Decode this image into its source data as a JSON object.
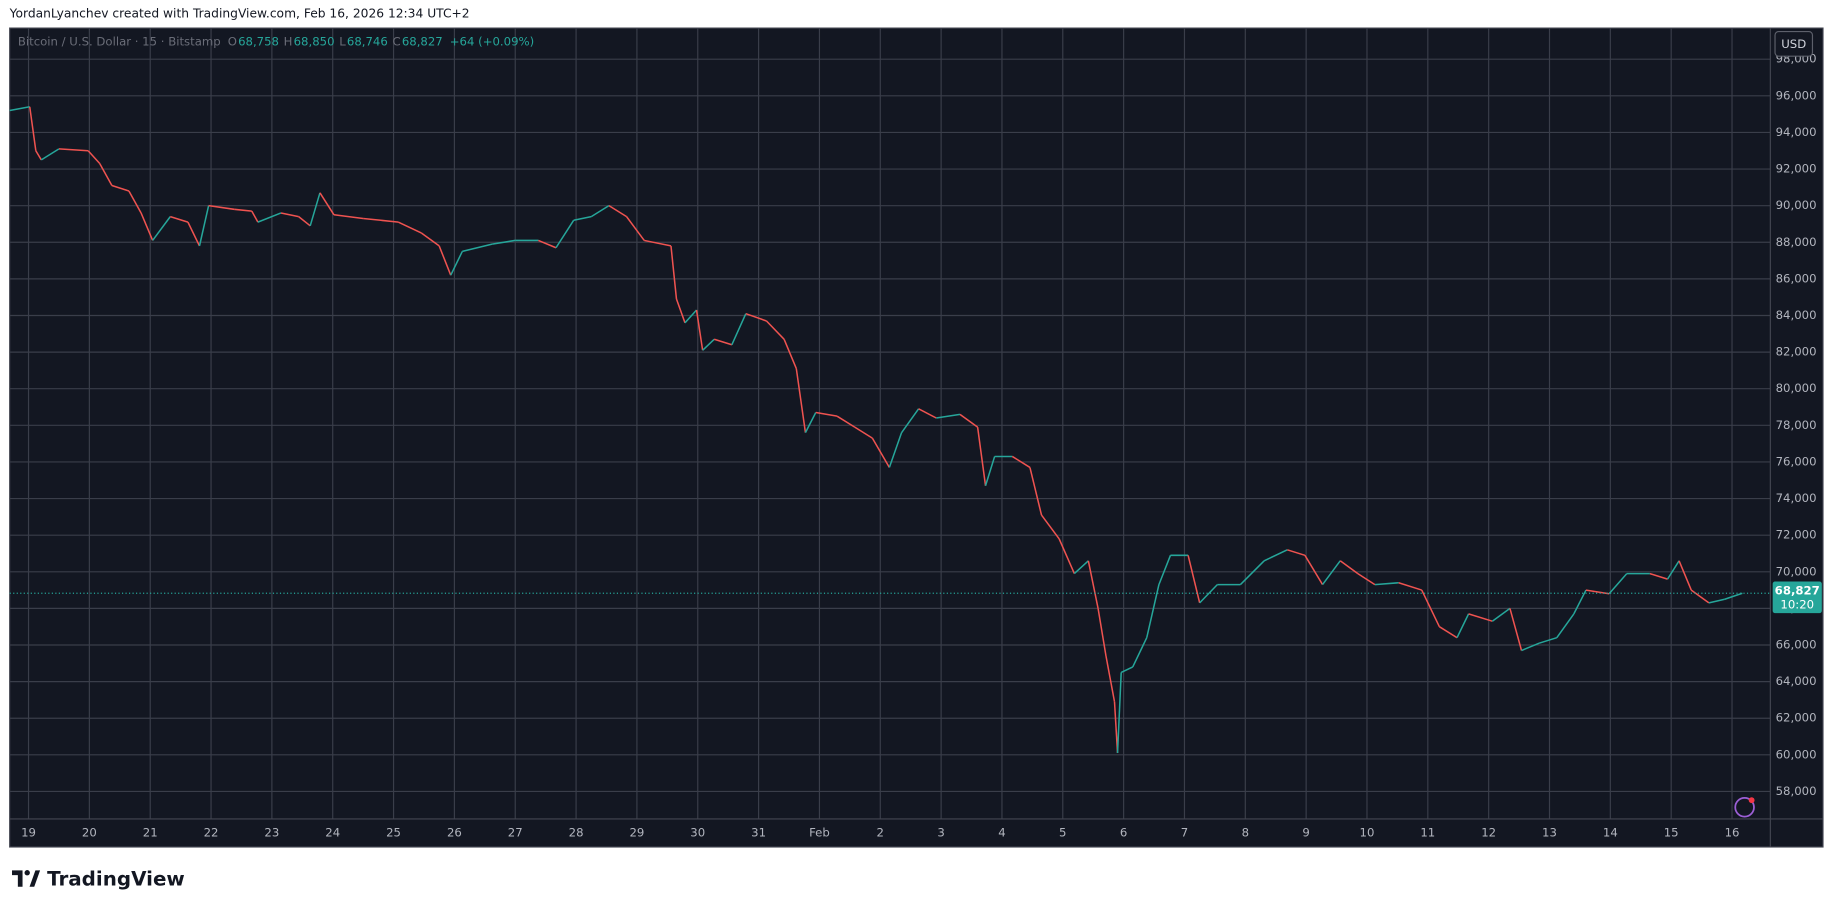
{
  "header": {
    "attribution": "YordanLyanchev created with TradingView.com, Feb 16, 2026 12:34 UTC+2"
  },
  "chart_data": {
    "type": "line",
    "title": "Bitcoin / U.S. Dollar · 15 · Bitstamp",
    "ohlc": [
      {
        "label": "O",
        "value": "68,758"
      },
      {
        "label": "H",
        "value": "68,850"
      },
      {
        "label": "L",
        "value": "68,746"
      },
      {
        "label": "C",
        "value": "68,827"
      }
    ],
    "change": "+64 (+0.09%)",
    "currency": "USD",
    "price_label": "68,827",
    "countdown": "10:20",
    "x": [
      -0.31,
      0.02,
      0.12,
      0.21,
      0.5,
      0.98,
      1.17,
      1.37,
      1.65,
      1.85,
      2.04,
      2.33,
      2.62,
      2.81,
      2.96,
      3.38,
      3.67,
      3.77,
      4.15,
      4.44,
      4.63,
      4.79,
      5.02,
      5.5,
      6.08,
      6.46,
      6.75,
      6.94,
      7.13,
      7.62,
      8.0,
      8.38,
      8.67,
      8.96,
      9.25,
      9.54,
      9.83,
      10.12,
      10.56,
      10.65,
      10.79,
      10.98,
      11.08,
      11.27,
      11.56,
      11.79,
      12.13,
      12.42,
      12.62,
      12.77,
      12.94,
      13.29,
      13.58,
      13.87,
      14.15,
      14.35,
      14.63,
      14.92,
      15.31,
      15.6,
      15.73,
      15.88,
      16.17,
      16.46,
      16.65,
      16.94,
      17.19,
      17.42,
      17.58,
      17.71,
      17.85,
      17.9,
      17.96,
      18.15,
      18.38,
      18.58,
      18.77,
      19.06,
      19.25,
      19.54,
      19.92,
      20.31,
      20.69,
      20.98,
      21.27,
      21.56,
      21.85,
      22.13,
      22.52,
      22.9,
      23.19,
      23.48,
      23.67,
      24.06,
      24.35,
      24.54,
      24.83,
      25.12,
      25.4,
      25.6,
      25.98,
      26.27,
      26.65,
      26.94,
      27.13,
      27.33,
      27.62,
      27.88,
      28.17
    ],
    "series": [
      {
        "up_color": "#26a69a",
        "down_color": "#ef5350",
        "values": [
          95200,
          95400,
          93000,
          92500,
          93100,
          93000,
          92300,
          91100,
          90800,
          89600,
          88100,
          89400,
          89100,
          87800,
          90000,
          89800,
          89700,
          89100,
          89600,
          89400,
          88900,
          90700,
          89500,
          89300,
          89100,
          88500,
          87800,
          86200,
          87500,
          87900,
          88100,
          88100,
          87700,
          89200,
          89400,
          90000,
          89400,
          88100,
          87800,
          84900,
          83600,
          84300,
          82100,
          82700,
          82400,
          84100,
          83700,
          82700,
          81100,
          77600,
          78700,
          78500,
          77900,
          77300,
          75700,
          77600,
          78900,
          78400,
          78600,
          77900,
          74700,
          76300,
          76300,
          75700,
          73100,
          71800,
          69900,
          70600,
          68000,
          65400,
          62900,
          60100,
          64500,
          64800,
          66400,
          69300,
          70900,
          70900,
          68300,
          69300,
          69300,
          70600,
          71200,
          70900,
          69300,
          70600,
          69900,
          69300,
          69400,
          69000,
          67000,
          66400,
          67700,
          67300,
          68000,
          65700,
          66100,
          66400,
          67700,
          69000,
          68800,
          69900,
          69900,
          69600,
          70600,
          69000,
          68300,
          68500,
          68827
        ]
      }
    ],
    "xlim": [
      -0.31,
      28.63
    ],
    "ylim": [
      56500,
      99700
    ],
    "xticks": [
      {
        "value": 0,
        "label": "19"
      },
      {
        "value": 1,
        "label": "20"
      },
      {
        "value": 2,
        "label": "21"
      },
      {
        "value": 3,
        "label": "22"
      },
      {
        "value": 4,
        "label": "23"
      },
      {
        "value": 5,
        "label": "24"
      },
      {
        "value": 6,
        "label": "25"
      },
      {
        "value": 7,
        "label": "26"
      },
      {
        "value": 8,
        "label": "27"
      },
      {
        "value": 9,
        "label": "28"
      },
      {
        "value": 10,
        "label": "29"
      },
      {
        "value": 11,
        "label": "30"
      },
      {
        "value": 12,
        "label": "31"
      },
      {
        "value": 13,
        "label": "Feb"
      },
      {
        "value": 14,
        "label": "2"
      },
      {
        "value": 15,
        "label": "3"
      },
      {
        "value": 16,
        "label": "4"
      },
      {
        "value": 17,
        "label": "5"
      },
      {
        "value": 18,
        "label": "6"
      },
      {
        "value": 19,
        "label": "7"
      },
      {
        "value": 20,
        "label": "8"
      },
      {
        "value": 21,
        "label": "9"
      },
      {
        "value": 22,
        "label": "10"
      },
      {
        "value": 23,
        "label": "11"
      },
      {
        "value": 24,
        "label": "12"
      },
      {
        "value": 25,
        "label": "13"
      },
      {
        "value": 26,
        "label": "14"
      },
      {
        "value": 27,
        "label": "15"
      },
      {
        "value": 28,
        "label": "16"
      }
    ],
    "yticks": [
      {
        "value": 58000,
        "label": "58,000"
      },
      {
        "value": 60000,
        "label": "60,000"
      },
      {
        "value": 62000,
        "label": "62,000"
      },
      {
        "value": 64000,
        "label": "64,000"
      },
      {
        "value": 66000,
        "label": "66,000"
      },
      {
        "value": 68000,
        "label": "68,000"
      },
      {
        "value": 70000,
        "label": "70,000"
      },
      {
        "value": 72000,
        "label": "72,000"
      },
      {
        "value": 74000,
        "label": "74,000"
      },
      {
        "value": 76000,
        "label": "76,000"
      },
      {
        "value": 78000,
        "label": "78,000"
      },
      {
        "value": 80000,
        "label": "80,000"
      },
      {
        "value": 82000,
        "label": "82,000"
      },
      {
        "value": 84000,
        "label": "84,000"
      },
      {
        "value": 86000,
        "label": "86,000"
      },
      {
        "value": 88000,
        "label": "88,000"
      },
      {
        "value": 90000,
        "label": "90,000"
      },
      {
        "value": 92000,
        "label": "92,000"
      },
      {
        "value": 94000,
        "label": "94,000"
      },
      {
        "value": 96000,
        "label": "96,000"
      },
      {
        "value": 98000,
        "label": "98,000"
      }
    ],
    "grid": true
  },
  "footer": {
    "brand": "TradingView"
  }
}
